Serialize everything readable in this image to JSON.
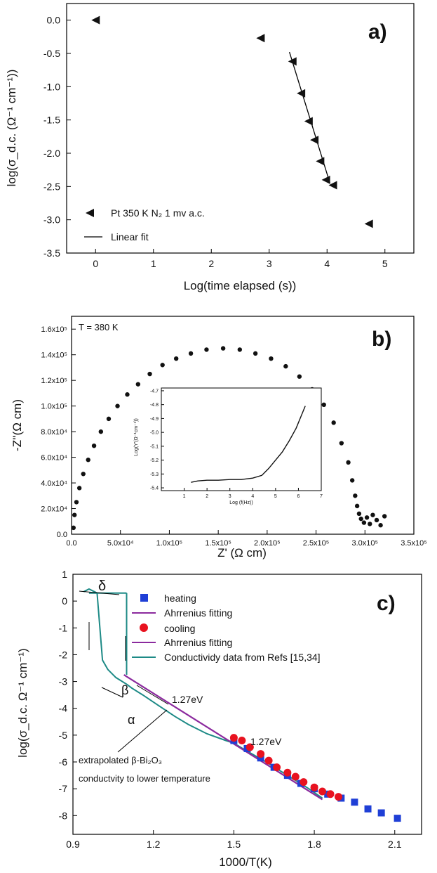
{
  "chart_data": [
    {
      "type": "scatter",
      "panel_label": "a)",
      "xlabel": "Log(time elapsed (s))",
      "ylabel": "log(σ_d.c. (Ω⁻¹ cm⁻¹))",
      "xlim": [
        -0.5,
        5.5
      ],
      "ylim": [
        -3.5,
        0.25
      ],
      "xticks": [
        "0",
        "1",
        "2",
        "3",
        "4",
        "5"
      ],
      "yticks": [
        "0.0",
        "-0.5",
        "-1.0",
        "-1.5",
        "-2.0",
        "-2.5",
        "-3.0",
        "-3.5"
      ],
      "legend": [
        "Pt 350 K N₂ 1 mv a.c.",
        "Linear fit"
      ],
      "series": [
        {
          "name": "Pt 350 K N₂ 1 mv a.c.",
          "marker": "left-triangle",
          "x": [
            0.0,
            2.85,
            3.4,
            3.55,
            3.68,
            3.78,
            3.88,
            3.98,
            4.1,
            4.72
          ],
          "y": [
            0.0,
            -0.27,
            -0.62,
            -1.1,
            -1.52,
            -1.8,
            -2.12,
            -2.4,
            -2.48,
            -3.06
          ]
        },
        {
          "name": "Linear fit",
          "type": "line",
          "x": [
            3.35,
            4.05
          ],
          "y": [
            -0.48,
            -2.45
          ]
        }
      ]
    },
    {
      "type": "scatter",
      "panel_label": "b)",
      "annotation": "T = 380 K",
      "xlabel": "Z' (Ω cm)",
      "ylabel": "-Z''(Ω cm)",
      "xlim": [
        0,
        350000
      ],
      "ylim": [
        0,
        170000
      ],
      "xticks": [
        "0.0",
        "5.0x10⁴",
        "1.0x10⁵",
        "1.5x10⁵",
        "2.0x10⁵",
        "2.5x10⁵",
        "3.0x10⁵",
        "3.5x10⁵"
      ],
      "yticks": [
        "0.0",
        "2.0x10⁴",
        "4.0x10⁴",
        "6.0x10⁴",
        "8.0x10⁴",
        "1.0x10⁵",
        "1.2x10⁵",
        "1.4x10⁵",
        "1.6x10⁵"
      ],
      "series": [
        {
          "name": "",
          "x": [
            2000,
            3000,
            5000,
            8000,
            12000,
            17000,
            23000,
            30000,
            38000,
            47000,
            57000,
            68000,
            80000,
            93000,
            107000,
            122000,
            138000,
            155000,
            172000,
            188000,
            204000,
            219000,
            233000,
            246000,
            258000,
            268000,
            276000,
            283000,
            287000,
            290000,
            292000,
            294000,
            296000,
            299000,
            302000,
            305000,
            308000,
            312000,
            316000,
            320000
          ],
          "y": [
            5000,
            15000,
            25000,
            36000,
            47000,
            58000,
            69000,
            80000,
            90000,
            100000,
            109000,
            117000,
            125000,
            132000,
            137000,
            141000,
            144000,
            145000,
            144000,
            141000,
            137000,
            131000,
            123000,
            113000,
            101000,
            87000,
            71000,
            56000,
            42000,
            30000,
            22000,
            16000,
            12000,
            9000,
            13000,
            8000,
            15000,
            11000,
            7000,
            14000
          ]
        }
      ],
      "inset": {
        "xlabel": "Log (f(Hz))",
        "ylabel": "Log(Y'(Ω⁻¹cm⁻¹))",
        "xlim": [
          0,
          7
        ],
        "ylim": [
          -54.2,
          -46.8
        ],
        "xticks": [
          "1",
          "2",
          "3",
          "4",
          "5",
          "6",
          "7"
        ],
        "yticks": [
          "-4.7",
          "-4.8",
          "-4.9",
          "-5.0",
          "-5.1",
          "-5.2",
          "-5.3",
          "-5.4"
        ],
        "x": [
          1.3,
          1.6,
          2.0,
          2.5,
          3.0,
          3.5,
          4.0,
          4.4,
          4.7,
          5.0,
          5.3,
          5.6,
          5.9,
          6.1,
          6.3
        ],
        "y": [
          -53.6,
          -53.5,
          -53.45,
          -53.45,
          -53.4,
          -53.4,
          -53.3,
          -53.1,
          -52.6,
          -52.0,
          -51.4,
          -50.6,
          -49.7,
          -48.9,
          -48.1
        ]
      }
    },
    {
      "type": "line",
      "panel_label": "c)",
      "xlabel": "1000/T(K)",
      "ylabel": "log(σ_d.c. Ω⁻¹ cm⁻¹)",
      "xlim": [
        0.9,
        2.2
      ],
      "ylim": [
        -8.7,
        1.0
      ],
      "xticks": [
        "0.9",
        "1.2",
        "1.5",
        "1.8",
        "2.1"
      ],
      "yticks": [
        "1",
        "0",
        "-1",
        "-2",
        "-3",
        "-4",
        "-5",
        "-6",
        "-7",
        "-8"
      ],
      "legend": [
        "heating",
        "Ahrrenius fitting",
        "cooling",
        "Ahrrenius fitting",
        "Conductividy data from Refs [15,34]"
      ],
      "colors": {
        "heating": "#1f3fd6",
        "cooling": "#e8121f",
        "fit": "#8b2a9e",
        "refs": "#1d8a86"
      },
      "annotations": [
        "δ",
        "β",
        "α",
        "1.27eV",
        "1.27eV",
        "extrapolated β-Bi₂O₃",
        "conductvity to lower temperature"
      ],
      "series": [
        {
          "name": "heating",
          "marker": "square",
          "x": [
            1.5,
            1.55,
            1.6,
            1.65,
            1.7,
            1.75,
            1.8,
            1.85,
            1.9,
            1.95,
            2.0,
            2.05,
            2.11
          ],
          "y": [
            -5.2,
            -5.5,
            -5.85,
            -6.2,
            -6.5,
            -6.8,
            -7.0,
            -7.2,
            -7.35,
            -7.5,
            -7.75,
            -7.9,
            -8.1
          ]
        },
        {
          "name": "cooling",
          "marker": "circle",
          "x": [
            1.5,
            1.53,
            1.56,
            1.6,
            1.63,
            1.66,
            1.7,
            1.73,
            1.76,
            1.8,
            1.83,
            1.86,
            1.89
          ],
          "y": [
            -5.1,
            -5.2,
            -5.45,
            -5.7,
            -5.95,
            -6.2,
            -6.4,
            -6.55,
            -6.75,
            -6.95,
            -7.1,
            -7.2,
            -7.3
          ]
        },
        {
          "name": "Ahrrenius fitting",
          "type": "line",
          "x": [
            1.09,
            1.83
          ],
          "y": [
            -2.75,
            -7.4
          ]
        },
        {
          "name": "Conductividy data from Refs [15,34]",
          "type": "line",
          "x": [
            0.94,
            0.96,
            0.99,
            1.01,
            1.03,
            1.06,
            1.1,
            1.12,
            1.16,
            1.22,
            1.28,
            1.33,
            1.4,
            1.47,
            1.5,
            1.55,
            1.62,
            1.7,
            1.78,
            1.83
          ],
          "y": [
            0.35,
            0.45,
            0.3,
            -2.2,
            -2.55,
            -2.85,
            -3.1,
            -3.25,
            -3.5,
            -3.9,
            -4.3,
            -4.6,
            -4.95,
            -5.2,
            -5.3,
            -5.6,
            -6.0,
            -6.5,
            -7.0,
            -7.35
          ]
        }
      ]
    }
  ]
}
